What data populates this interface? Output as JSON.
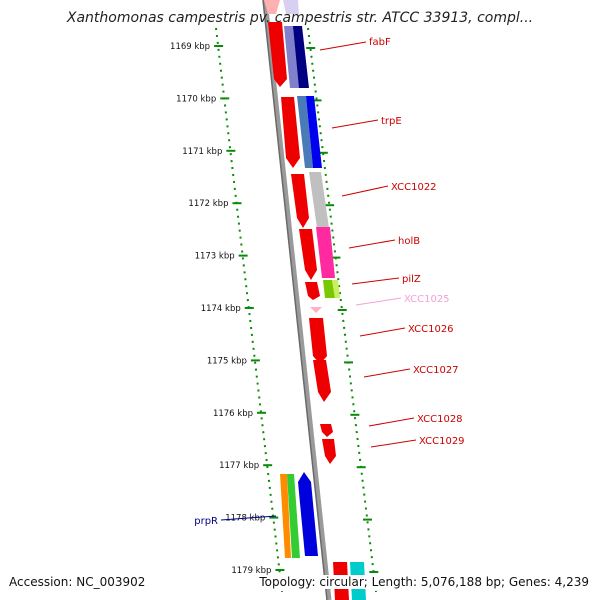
{
  "title": "Xanthomonas campestris pv. campestris str. ATCC 33913, compl...",
  "accession": "Accession: NC_003902",
  "summary": "Topology: circular; Length: 5,076,188 bp; Genes: 4,239",
  "colors": {
    "backbone": "#808080",
    "tick": "#0a8a0a",
    "label_red": "#cc0000",
    "label_faded": "#f4a0d8",
    "label_navy": "#000080"
  },
  "ticks": [
    {
      "label": "1169 kbp"
    },
    {
      "label": "1170 kbp"
    },
    {
      "label": "1171 kbp"
    },
    {
      "label": "1172 kbp"
    },
    {
      "label": "1173 kbp"
    },
    {
      "label": "1174 kbp"
    },
    {
      "label": "1175 kbp"
    },
    {
      "label": "1176 kbp"
    },
    {
      "label": "1177 kbp"
    },
    {
      "label": "1178 kbp"
    },
    {
      "label": "1179 kbp"
    }
  ],
  "gene_labels": [
    {
      "name": "fabF",
      "color": "#cc0000"
    },
    {
      "name": "trpE",
      "color": "#cc0000"
    },
    {
      "name": "XCC1022",
      "color": "#cc0000"
    },
    {
      "name": "holB",
      "color": "#cc0000"
    },
    {
      "name": "pilZ",
      "color": "#cc0000"
    },
    {
      "name": "XCC1025",
      "color": "#f4a0d8"
    },
    {
      "name": "XCC1026",
      "color": "#cc0000"
    },
    {
      "name": "XCC1027",
      "color": "#cc0000"
    },
    {
      "name": "XCC1028",
      "color": "#cc0000"
    },
    {
      "name": "XCC1029",
      "color": "#cc0000"
    },
    {
      "name": "prpR",
      "color": "#000080"
    }
  ]
}
